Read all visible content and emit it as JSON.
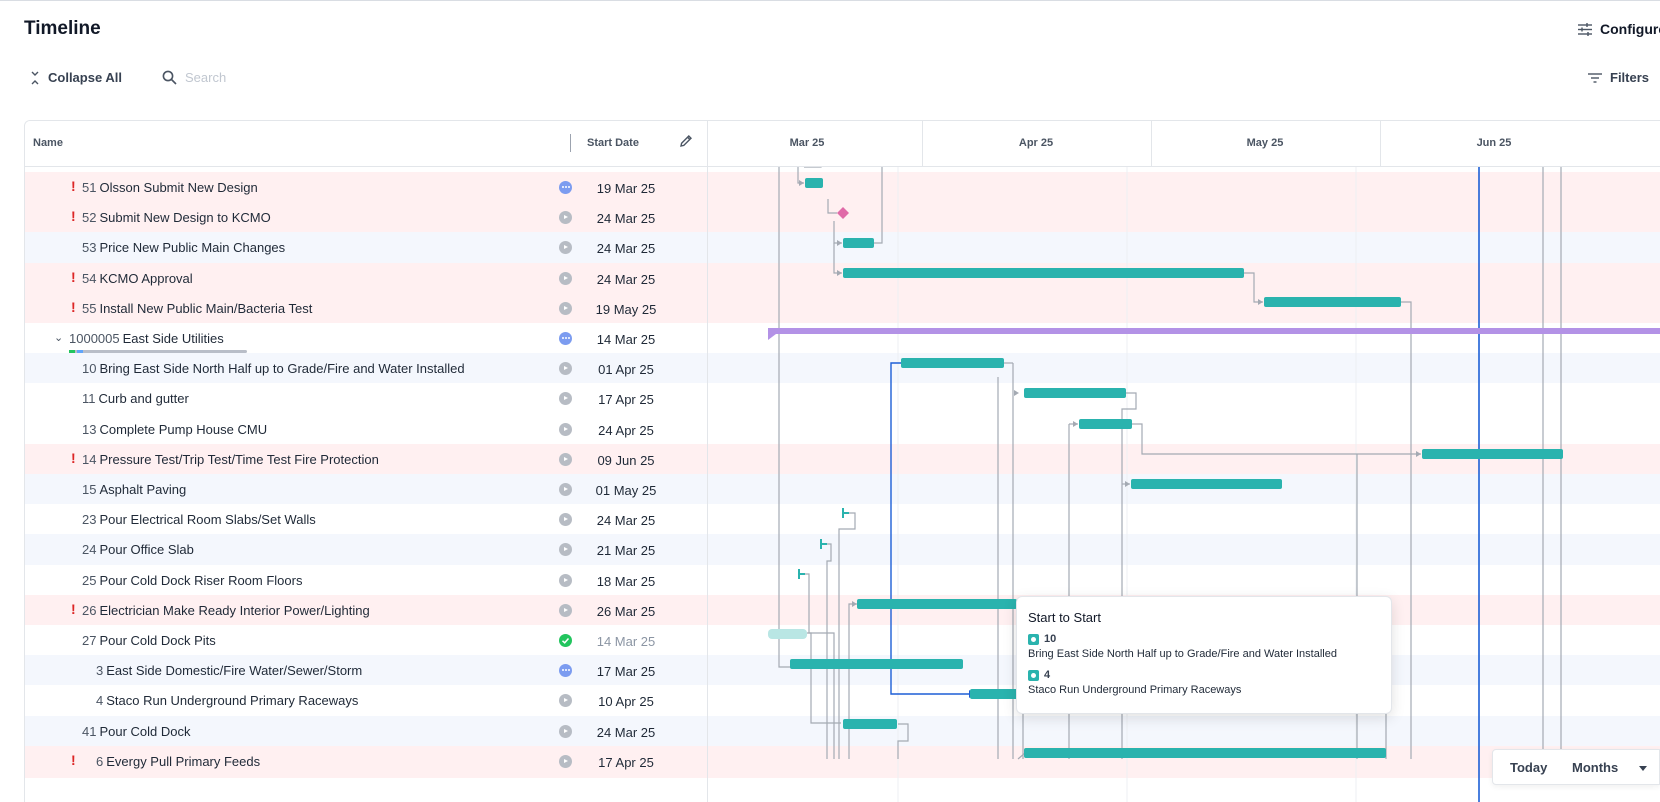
{
  "page": {
    "title": "Timeline",
    "configure_label": "Configure"
  },
  "toolbar": {
    "collapse_label": "Collapse All",
    "search_placeholder": "Search",
    "filters_label": "Filters"
  },
  "table": {
    "col_name": "Name",
    "col_start": "Start Date"
  },
  "timeline": {
    "months": [
      "Mar 25",
      "Apr 25",
      "May 25",
      "Jun 25"
    ]
  },
  "rows": [
    {
      "num": "51",
      "name": "Olsson Submit New Design",
      "date": "19 Mar 25",
      "warn": "!",
      "status": "blue"
    },
    {
      "num": "52",
      "name": "Submit New Design to KCMO",
      "date": "24 Mar 25",
      "warn": "!",
      "status": "grey"
    },
    {
      "num": "53",
      "name": "Price New Public Main Changes",
      "date": "24 Mar 25",
      "warn": "",
      "status": "grey"
    },
    {
      "num": "54",
      "name": "KCMO Approval",
      "date": "24 Mar 25",
      "warn": "!",
      "status": "grey"
    },
    {
      "num": "55",
      "name": "Install New Public Main/Bacteria Test",
      "date": "19 May 25",
      "warn": "!",
      "status": "grey"
    },
    {
      "num": "1000005",
      "name": "East Side Utilities",
      "date": "14 Mar 25",
      "warn": "",
      "status": "blue",
      "group": true
    },
    {
      "num": "10",
      "name": "Bring East Side North Half up to Grade/Fire and Water Installed",
      "date": "01 Apr 25",
      "warn": "",
      "status": "grey"
    },
    {
      "num": "11",
      "name": "Curb and gutter",
      "date": "17 Apr 25",
      "warn": "",
      "status": "grey"
    },
    {
      "num": "13",
      "name": "Complete Pump House CMU",
      "date": "24 Apr 25",
      "warn": "",
      "status": "grey"
    },
    {
      "num": "14",
      "name": "Pressure Test/Trip Test/Time Test Fire Protection",
      "date": "09 Jun 25",
      "warn": "!",
      "status": "grey"
    },
    {
      "num": "15",
      "name": "Asphalt Paving",
      "date": "01 May 25",
      "warn": "",
      "status": "grey"
    },
    {
      "num": "23",
      "name": "Pour Electrical Room Slabs/Set Walls",
      "date": "24 Mar 25",
      "warn": "",
      "status": "grey"
    },
    {
      "num": "24",
      "name": "Pour Office Slab",
      "date": "21 Mar 25",
      "warn": "",
      "status": "grey"
    },
    {
      "num": "25",
      "name": "Pour Cold Dock Riser Room Floors",
      "date": "18 Mar 25",
      "warn": "",
      "status": "grey"
    },
    {
      "num": "26",
      "name": "Electrician Make Ready Interior Power/Lighting",
      "date": "26 Mar 25",
      "warn": "!",
      "status": "grey"
    },
    {
      "num": "27",
      "name": "Pour Cold Dock Pits",
      "date": "14 Mar 25",
      "warn": "",
      "status": "green",
      "muted": true
    },
    {
      "num": "3",
      "name": "East Side Domestic/Fire Water/Sewer/Storm",
      "date": "17 Mar 25",
      "warn": "",
      "status": "blue"
    },
    {
      "num": "4",
      "name": "Staco Run Underground Primary Raceways",
      "date": "10 Apr 25",
      "warn": "",
      "status": "grey"
    },
    {
      "num": "41",
      "name": "Pour Cold Dock",
      "date": "24 Mar 25",
      "warn": "",
      "status": "grey"
    },
    {
      "num": "6",
      "name": "Evergy Pull Primary Feeds",
      "date": "17 Apr 25",
      "warn": "!",
      "status": "grey"
    }
  ],
  "tooltip": {
    "title": "Start to Start",
    "from_num": "10",
    "from_name": "Bring East Side North Half up to Grade/Fire and Water Installed",
    "to_num": "4",
    "to_name": "Staco Run Underground Primary Raceways"
  },
  "controls": {
    "today_label": "Today",
    "scale_label": "Months"
  }
}
